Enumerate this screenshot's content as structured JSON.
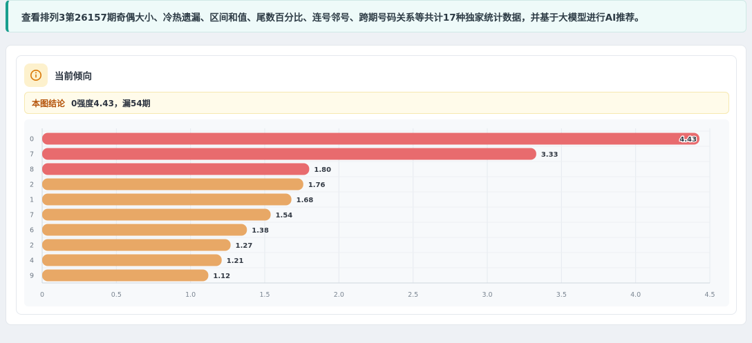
{
  "banner": {
    "text": "查看排列3第26157期奇偶大小、冷热遗漏、区间和值、尾数百分比、连号邻号、跨期号码关系等共计17种独家统计数据，并基于大模型进行AI推荐。"
  },
  "card": {
    "title": "当前倾向",
    "icon": "info-icon",
    "conclusion_label": "本图结论",
    "conclusion_text": "0强度4.43，漏54期"
  },
  "colors": {
    "strong": "#e86b6e",
    "medium": "#e8a866",
    "accent_bg": "#fdf1cd",
    "accent": "#b45309"
  },
  "chart_data": {
    "type": "bar",
    "orientation": "horizontal",
    "categories": [
      "0",
      "7",
      "8",
      "2",
      "1",
      "7",
      "6",
      "2",
      "4",
      "9"
    ],
    "values": [
      4.43,
      3.33,
      1.8,
      1.76,
      1.68,
      1.54,
      1.38,
      1.27,
      1.21,
      1.12
    ],
    "value_labels": [
      "4.43",
      "3.33",
      "1.80",
      "1.76",
      "1.68",
      "1.54",
      "1.38",
      "1.27",
      "1.21",
      "1.12"
    ],
    "bar_groups": [
      "strong",
      "strong",
      "strong",
      "medium",
      "medium",
      "medium",
      "medium",
      "medium",
      "medium",
      "medium"
    ],
    "xlim": [
      0,
      4.5
    ],
    "x_ticks": [
      "0",
      "0.5",
      "1.0",
      "1.5",
      "2.0",
      "2.5",
      "3.0",
      "3.5",
      "4.0",
      "4.5"
    ],
    "grid": true,
    "legend": "none"
  }
}
